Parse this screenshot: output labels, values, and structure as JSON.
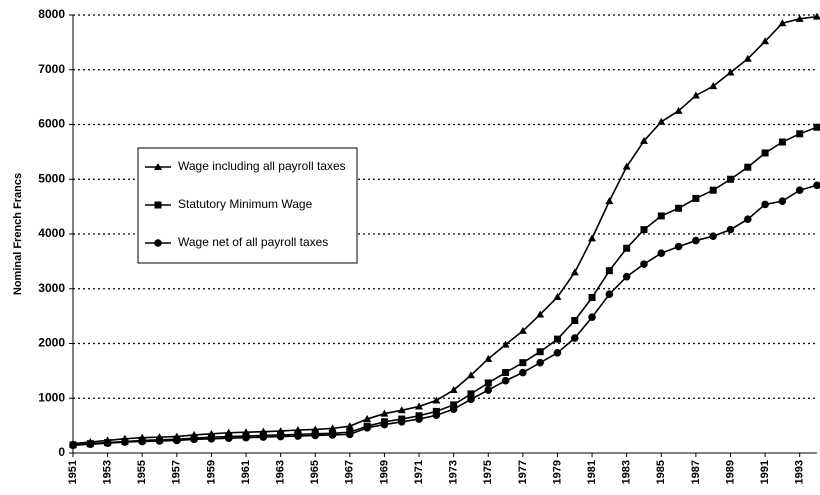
{
  "chart_data": {
    "type": "line",
    "ylabel": "Nominal French Francs",
    "x": [
      1951,
      1952,
      1953,
      1954,
      1955,
      1956,
      1957,
      1958,
      1959,
      1960,
      1961,
      1962,
      1963,
      1964,
      1965,
      1966,
      1967,
      1968,
      1969,
      1970,
      1971,
      1972,
      1973,
      1974,
      1975,
      1976,
      1977,
      1978,
      1979,
      1980,
      1981,
      1982,
      1983,
      1984,
      1985,
      1986,
      1987,
      1988,
      1989,
      1990,
      1991,
      1992,
      1993,
      1994
    ],
    "xlim": [
      1951,
      1994
    ],
    "xticks": [
      1951,
      1953,
      1955,
      1957,
      1959,
      1961,
      1963,
      1965,
      1967,
      1969,
      1971,
      1973,
      1975,
      1977,
      1979,
      1981,
      1983,
      1985,
      1987,
      1989,
      1991,
      1993
    ],
    "ylim": [
      0,
      8000
    ],
    "yticks": [
      0,
      1000,
      2000,
      3000,
      4000,
      5000,
      6000,
      7000,
      8000
    ],
    "grid": true,
    "legend": "center-left",
    "series": [
      {
        "name": "Wage including all payroll taxes",
        "color": "#000000",
        "marker": "triangle",
        "values": [
          170,
          200,
          230,
          260,
          280,
          290,
          300,
          330,
          350,
          370,
          380,
          390,
          400,
          420,
          430,
          450,
          490,
          620,
          720,
          780,
          850,
          960,
          1150,
          1420,
          1720,
          1980,
          2230,
          2530,
          2850,
          3300,
          3920,
          4600,
          5230,
          5700,
          6050,
          6250,
          6530,
          6700,
          6950,
          7200,
          7520,
          7850,
          7930,
          7970
        ]
      },
      {
        "name": "Statutory Minimum Wage",
        "color": "#000000",
        "marker": "square",
        "values": [
          150,
          170,
          190,
          210,
          230,
          240,
          250,
          270,
          290,
          300,
          310,
          320,
          330,
          340,
          350,
          360,
          380,
          490,
          570,
          620,
          680,
          760,
          880,
          1080,
          1280,
          1470,
          1650,
          1850,
          2080,
          2420,
          2840,
          3330,
          3740,
          4080,
          4330,
          4470,
          4650,
          4800,
          5000,
          5220,
          5480,
          5680,
          5830,
          5950
        ]
      },
      {
        "name": "Wage net of all payroll taxes",
        "color": "#000000",
        "marker": "circle",
        "values": [
          140,
          160,
          180,
          200,
          210,
          220,
          230,
          250,
          260,
          270,
          280,
          290,
          300,
          310,
          320,
          330,
          340,
          460,
          520,
          570,
          620,
          690,
          800,
          980,
          1150,
          1320,
          1470,
          1650,
          1830,
          2100,
          2480,
          2900,
          3220,
          3450,
          3650,
          3770,
          3880,
          3960,
          4080,
          4270,
          4540,
          4600,
          4800,
          4890
        ]
      }
    ]
  }
}
